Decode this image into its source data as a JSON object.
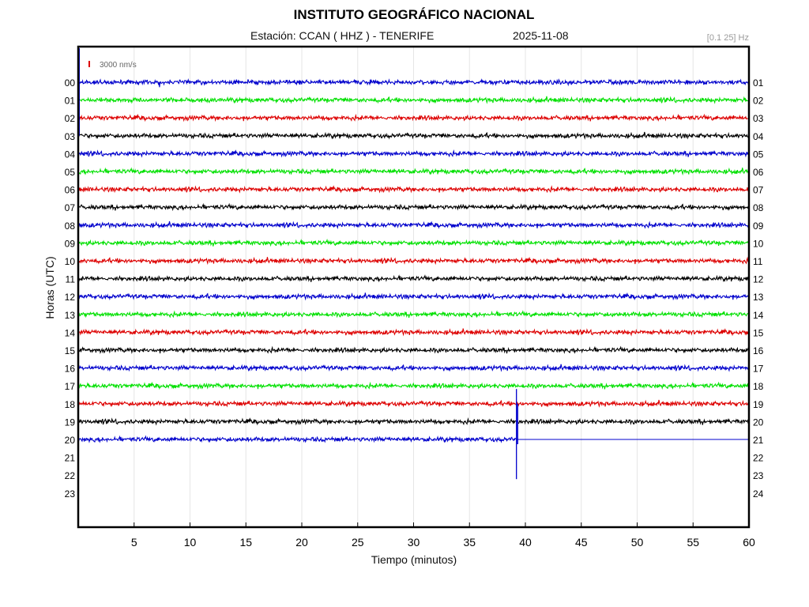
{
  "header": {
    "title": "INSTITUTO GEOGRÁFICO NACIONAL",
    "station_line": "Estación:  CCAN ( HHZ ) - TENERIFE",
    "date": "2025-11-08",
    "filter": "[0.1 25] Hz"
  },
  "chart_data": {
    "type": "line",
    "title": "INSTITUTO GEOGRÁFICO NACIONAL",
    "xlabel": "Tiempo (minutos)",
    "ylabel": "Horas (UTC)",
    "xlim": [
      0,
      60
    ],
    "x_ticks": [
      5,
      10,
      15,
      20,
      25,
      30,
      35,
      40,
      45,
      50,
      55,
      60
    ],
    "left_hour_labels": [
      "00",
      "01",
      "02",
      "03",
      "04",
      "05",
      "06",
      "07",
      "08",
      "09",
      "10",
      "11",
      "12",
      "13",
      "14",
      "15",
      "16",
      "17",
      "18",
      "19",
      "20",
      "21",
      "22",
      "23"
    ],
    "right_hour_labels": [
      "01",
      "02",
      "03",
      "04",
      "05",
      "06",
      "07",
      "08",
      "09",
      "10",
      "11",
      "12",
      "13",
      "14",
      "15",
      "16",
      "17",
      "18",
      "19",
      "20",
      "21",
      "22",
      "23",
      "24"
    ],
    "trace_colors": [
      "#0000cc",
      "#00e000",
      "#dd0000",
      "#000000"
    ],
    "recorded_hours": 21,
    "last_trace_end_minute": 39.2,
    "event_minute": 39.2,
    "scale_label": "3000 nm/s",
    "scale_color": "#dd0000",
    "grid": true
  }
}
